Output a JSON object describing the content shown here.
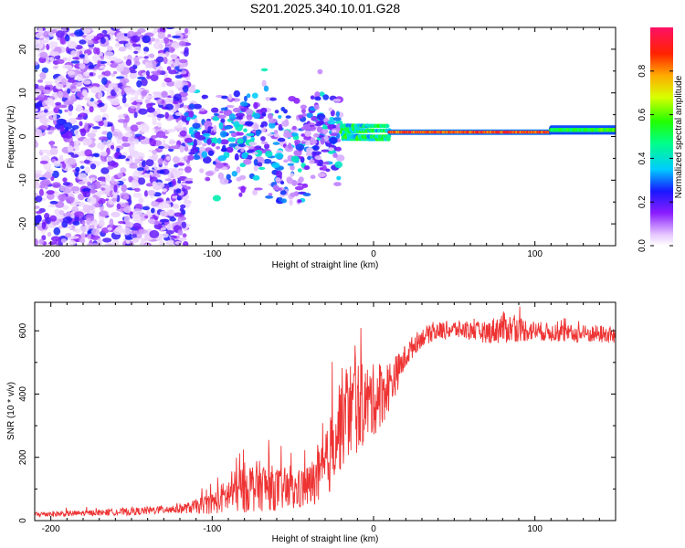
{
  "title": "S201.2025.340.10.01.G28",
  "colors": {
    "line": "#ee3333",
    "axis": "#000000",
    "background": "#ffffff"
  },
  "chart_data": [
    {
      "type": "heatmap",
      "title": "",
      "xlabel": "Height of straight line (km)",
      "ylabel": "Frequency (Hz)",
      "xlim": [
        -210,
        150
      ],
      "ylim": [
        -25,
        25
      ],
      "xticks": [
        -200,
        -100,
        0,
        100
      ],
      "yticks": [
        -20,
        -10,
        0,
        10,
        20
      ],
      "colorbar": {
        "label": "Normalized spectral amplitude",
        "range": [
          0,
          1
        ],
        "ticks": [
          "0.0",
          "0.2",
          "0.4",
          "0.6",
          "0.8"
        ],
        "tick_values": [
          0.0,
          0.2,
          0.4,
          0.6,
          0.8
        ]
      },
      "regions": [
        {
          "x_from": -210,
          "x_to": -115,
          "description": "scattered low-amplitude noise across all frequencies",
          "amplitude": 0.15
        },
        {
          "x_from": -115,
          "x_to": -20,
          "freq_center": 0,
          "freq_spread": 6,
          "amplitude": 0.25
        },
        {
          "x_from": -20,
          "x_to": 10,
          "freq_center": 1,
          "freq_spread": 2,
          "amplitude": 0.5
        },
        {
          "x_from": 10,
          "x_to": 110,
          "freq_center": 1,
          "freq_spread": 0.5,
          "amplitude": 0.95
        },
        {
          "x_from": 110,
          "x_to": 150,
          "freq_center": 1.5,
          "freq_spread": 1.2,
          "amplitude": 0.5
        }
      ]
    },
    {
      "type": "line",
      "title": "",
      "xlabel": "Height of straight line (km)",
      "ylabel": "SNR (10 * v/v)",
      "xlim": [
        -210,
        150
      ],
      "ylim": [
        0,
        690
      ],
      "xticks": [
        -200,
        -100,
        0,
        100
      ],
      "yticks": [
        0,
        200,
        400,
        600
      ],
      "series": [
        {
          "name": "SNR",
          "color": "#ee3333",
          "x": [
            -210,
            -190,
            -170,
            -150,
            -130,
            -115,
            -100,
            -90,
            -80,
            -70,
            -60,
            -50,
            -40,
            -30,
            -25,
            -20,
            -15,
            -10,
            -5,
            0,
            5,
            10,
            15,
            20,
            25,
            30,
            40,
            50,
            60,
            70,
            80,
            90,
            100,
            110,
            120,
            130,
            140,
            150
          ],
          "mean": [
            20,
            22,
            25,
            28,
            35,
            40,
            55,
            80,
            105,
            110,
            100,
            90,
            110,
            150,
            250,
            320,
            350,
            360,
            370,
            380,
            400,
            430,
            470,
            520,
            555,
            580,
            600,
            605,
            600,
            595,
            610,
            605,
            600,
            595,
            590,
            590,
            590,
            585
          ],
          "noise": [
            8,
            8,
            8,
            10,
            12,
            15,
            30,
            50,
            70,
            70,
            60,
            55,
            60,
            90,
            120,
            140,
            140,
            130,
            110,
            100,
            90,
            70,
            50,
            35,
            30,
            25,
            25,
            25,
            25,
            30,
            45,
            35,
            28,
            25,
            25,
            25,
            25,
            25
          ]
        }
      ]
    }
  ]
}
